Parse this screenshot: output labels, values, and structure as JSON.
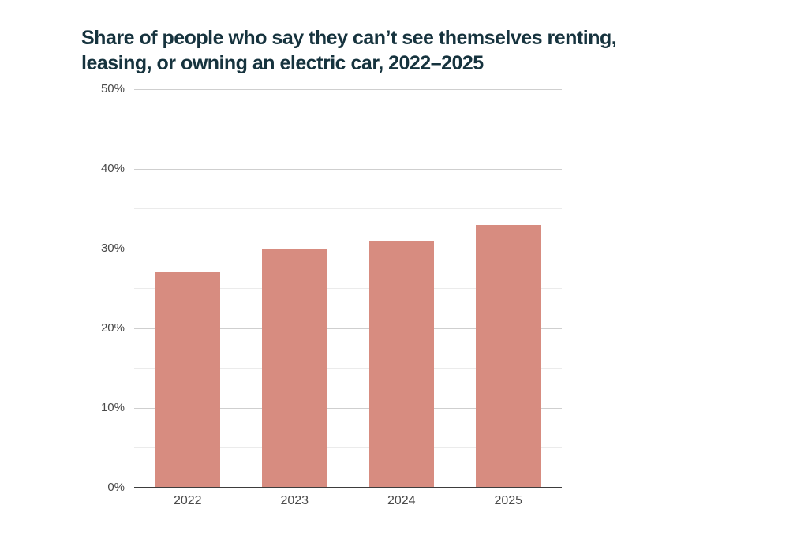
{
  "chart_data": {
    "type": "bar",
    "title": "Share of people who say they can’t see themselves renting, leasing, or owning an electric car, 2022–2025",
    "title_lines": [
      "Share of people who say they can’t see themselves renting,",
      "leasing, or owning an electric car, 2022–2025"
    ],
    "categories": [
      "2022",
      "2023",
      "2024",
      "2025"
    ],
    "values": [
      27,
      30,
      31,
      33
    ],
    "value_unit": "%",
    "xlabel": "",
    "ylabel": "",
    "ylim": [
      0,
      50
    ],
    "ytick_major_step": 10,
    "ytick_minor_step": 5,
    "ytick_labels": [
      "0%",
      "10%",
      "20%",
      "30%",
      "40%",
      "50%"
    ],
    "grid": "horizontal",
    "legend_position": "none",
    "colors": {
      "bar": "#d78c80",
      "title": "#16333e",
      "axis_line": "#3d3d3d",
      "gridline_major": "#cfcfcf",
      "gridline_minor": "#ebebeb",
      "tick_label": "#4a4a4a",
      "background": "#ffffff"
    }
  }
}
